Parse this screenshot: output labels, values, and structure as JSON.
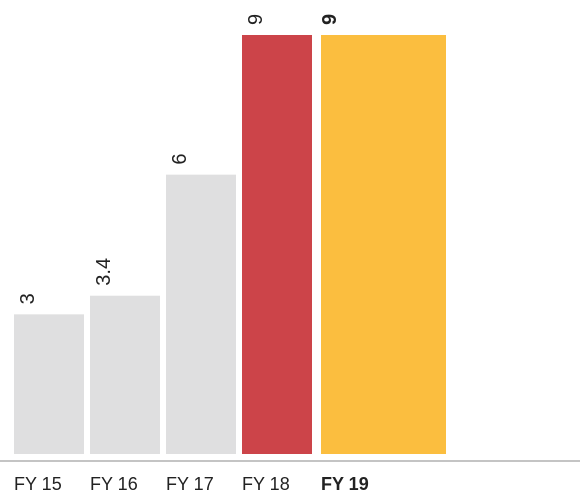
{
  "chart_data": {
    "type": "bar",
    "categories": [
      "FY 15",
      "FY 16",
      "FY 17",
      "FY 18",
      "FY 19"
    ],
    "values": [
      3,
      3.4,
      6,
      9,
      9
    ],
    "value_labels": [
      "3",
      "3.4",
      "6",
      "9",
      "9"
    ],
    "highlight_index": 4,
    "ylim": [
      0,
      9
    ],
    "title": "",
    "xlabel": "",
    "ylabel": "",
    "grid": false,
    "legend": "none",
    "colors": {
      "default": "#DFDFE0",
      "FY 18": "#CC4449",
      "FY 19": "#FBBE3F",
      "axis": "#888888",
      "text": "#222222"
    }
  }
}
